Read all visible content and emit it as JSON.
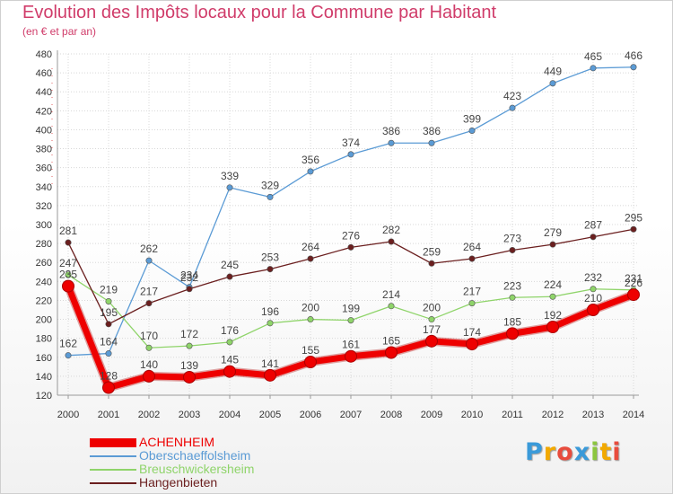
{
  "chart_data": {
    "type": "line",
    "title": "Evolution des Impôts locaux pour la Commune par Habitant",
    "subtitle": "(en € et par an)",
    "x": [
      "2000",
      "2001",
      "2002",
      "2003",
      "2004",
      "2005",
      "2006",
      "2007",
      "2008",
      "2009",
      "2010",
      "2011",
      "2012",
      "2013",
      "2014"
    ],
    "ylim": [
      120,
      480
    ],
    "yticks": [
      120,
      140,
      160,
      180,
      200,
      220,
      240,
      260,
      280,
      300,
      320,
      340,
      360,
      380,
      400,
      420,
      440,
      460,
      480
    ],
    "grid": true,
    "legend_position": "bottom-left",
    "series": [
      {
        "name": "ACHENHEIM",
        "color": "#ee0000",
        "values": [
          235,
          128,
          140,
          139,
          145,
          141,
          155,
          161,
          165,
          177,
          174,
          185,
          192,
          210,
          226
        ]
      },
      {
        "name": "Oberschaeffolsheim",
        "color": "#5b9bd5",
        "values": [
          162,
          164,
          262,
          234,
          339,
          329,
          356,
          374,
          386,
          386,
          399,
          423,
          449,
          465,
          466
        ]
      },
      {
        "name": "Breuschwickersheim",
        "color": "#8fd46a",
        "values": [
          247,
          219,
          170,
          172,
          176,
          196,
          200,
          199,
          214,
          200,
          217,
          223,
          224,
          232,
          231
        ]
      },
      {
        "name": "Hangenbieten",
        "color": "#6b1f1f",
        "values": [
          281,
          195,
          217,
          232,
          245,
          253,
          264,
          276,
          282,
          259,
          264,
          273,
          279,
          287,
          295
        ]
      }
    ]
  },
  "logo": {
    "letters": [
      "P",
      "r",
      "o",
      "x",
      "i",
      "t",
      "i"
    ],
    "colors": [
      "#3a9ad9",
      "#f2a900",
      "#e84c3d",
      "#3a9ad9",
      "#8cc63f",
      "#f2a900",
      "#e84c3d"
    ]
  }
}
